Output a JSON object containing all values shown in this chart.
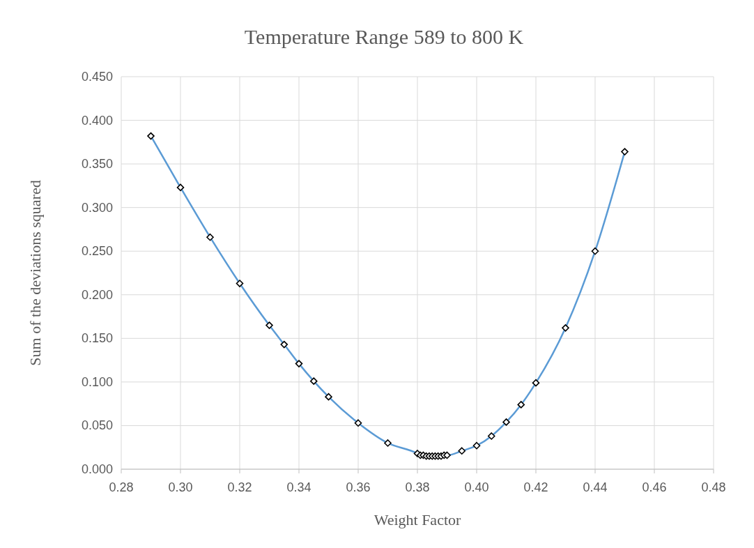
{
  "chart_data": {
    "type": "line",
    "title": "Temperature Range 589 to 800 K",
    "xlabel": "Weight Factor",
    "ylabel": "Sum of the deviations squared",
    "x": [
      0.29,
      0.3,
      0.31,
      0.32,
      0.33,
      0.335,
      0.34,
      0.345,
      0.35,
      0.36,
      0.37,
      0.38,
      0.381,
      0.382,
      0.383,
      0.384,
      0.385,
      0.386,
      0.387,
      0.388,
      0.389,
      0.39,
      0.395,
      0.4,
      0.405,
      0.41,
      0.415,
      0.42,
      0.43,
      0.44,
      0.45
    ],
    "series": [
      {
        "color": "#5b9bd5",
        "values": [
          0.382,
          0.323,
          0.266,
          0.213,
          0.165,
          0.143,
          0.121,
          0.101,
          0.083,
          0.053,
          0.03,
          0.018,
          0.016,
          0.016,
          0.015,
          0.015,
          0.015,
          0.015,
          0.015,
          0.015,
          0.016,
          0.016,
          0.021,
          0.027,
          0.038,
          0.054,
          0.074,
          0.099,
          0.162,
          0.25,
          0.364
        ]
      }
    ],
    "xlim": [
      0.28,
      0.48
    ],
    "xticks": [
      0.28,
      {
        "value": 0.3,
        "label": "0.30"
      },
      0.32,
      0.34,
      0.36,
      0.38,
      {
        "value": 0.4,
        "label": "0.40"
      },
      0.42,
      0.44,
      0.46,
      0.48
    ],
    "ylim": [
      0,
      0.45
    ],
    "yticks": [
      {
        "value": 0,
        "label": "0.000"
      },
      {
        "value": 0.05,
        "label": "0.050"
      },
      {
        "value": 0.1,
        "label": "0.100"
      },
      {
        "value": 0.15,
        "label": "0.150"
      },
      {
        "value": 0.2,
        "label": "0.200"
      },
      {
        "value": 0.25,
        "label": "0.250"
      },
      {
        "value": 0.3,
        "label": "0.300"
      },
      {
        "value": 0.35,
        "label": "0.350"
      },
      {
        "value": 0.4,
        "label": "0.400"
      },
      {
        "value": 0.45,
        "label": "0.450"
      }
    ],
    "grid": true,
    "marker": "diamond",
    "line_style": "solid"
  }
}
